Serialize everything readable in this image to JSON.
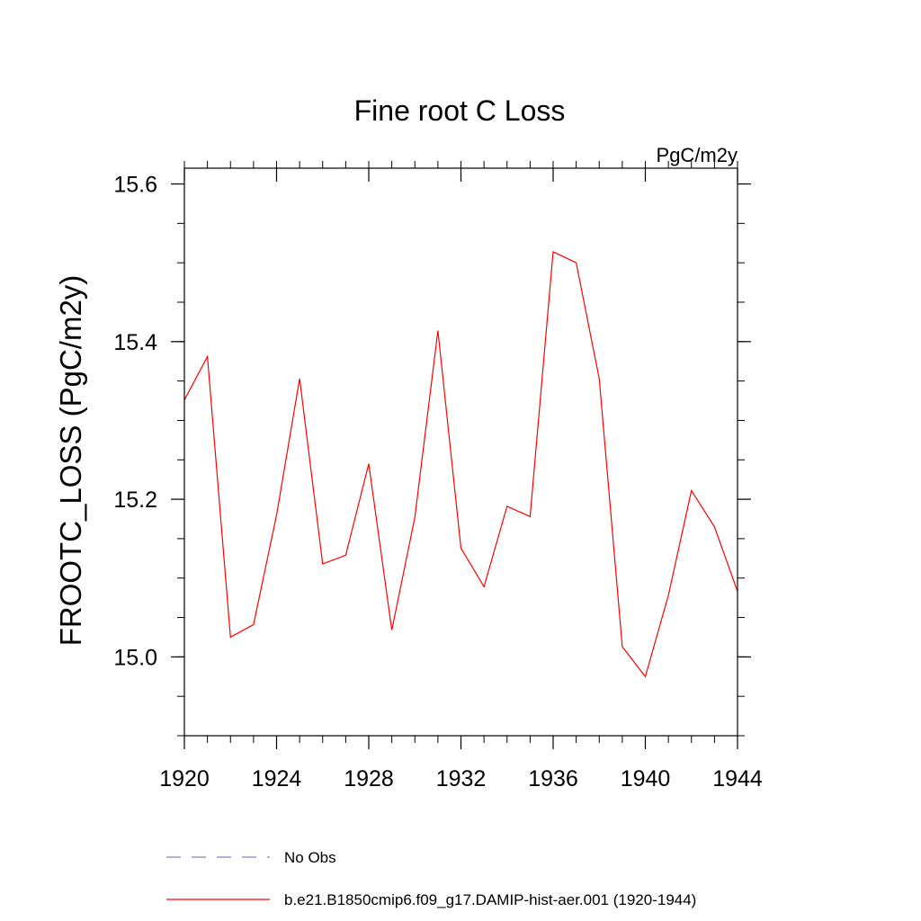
{
  "chart_data": {
    "type": "line",
    "title": "Fine root C Loss",
    "units_label": "PgC/m2y",
    "ylabel": "FROOTC_LOSS  (PgC/m2y)",
    "xlabel": "",
    "xlim": [
      1920,
      1944
    ],
    "ylim": [
      14.9,
      15.62
    ],
    "x_ticks": [
      1920,
      1924,
      1928,
      1932,
      1936,
      1940,
      1944
    ],
    "x_tick_labels": [
      "1920",
      "1924",
      "1928",
      "1932",
      "1936",
      "1940",
      "1944"
    ],
    "y_ticks": [
      15.0,
      15.2,
      15.4,
      15.6
    ],
    "y_tick_labels": [
      "15.0",
      "15.2",
      "15.4",
      "15.6"
    ],
    "y_minor_step": 0.05,
    "x_minor_step": 1,
    "grid": false,
    "legend_position": "bottom",
    "series": [
      {
        "name": "b.e21.B1850cmip6.f09_g17.DAMIP-hist-aer.001 (1920-1944)",
        "color": "#ff0000",
        "style": "solid",
        "x": [
          1920,
          1921,
          1922,
          1923,
          1924,
          1925,
          1926,
          1927,
          1928,
          1929,
          1930,
          1931,
          1932,
          1933,
          1934,
          1935,
          1936,
          1937,
          1938,
          1939,
          1940,
          1941,
          1942,
          1943,
          1944
        ],
        "y": [
          15.326,
          15.381,
          15.025,
          15.041,
          15.18,
          15.353,
          15.118,
          15.129,
          15.245,
          15.034,
          15.177,
          15.414,
          15.138,
          15.089,
          15.191,
          15.178,
          15.514,
          15.5,
          15.353,
          15.013,
          14.975,
          15.078,
          15.211,
          15.165,
          15.083
        ]
      },
      {
        "name": "No Obs",
        "color": "#8080c0",
        "style": "dashed",
        "x": [],
        "y": []
      }
    ]
  }
}
